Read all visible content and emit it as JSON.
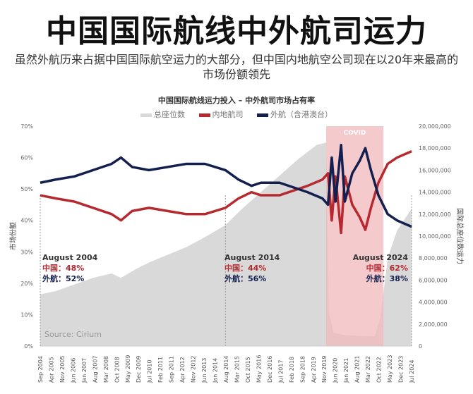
{
  "headline": "中国国际航线中外航司运力",
  "subtitle": "虽然外航历来占据中国国际航空运力的大部分，但中国内地航空公司现在以20年来最高的市场份额领先",
  "source": "Source: Cirium",
  "colors": {
    "seats": "#d9d9d9",
    "china": "#b5292f",
    "foreign": "#13204f",
    "covid": "#f0b8bc"
  },
  "chart_data": {
    "type": "line",
    "title": "中国国际航线运力投入 – 中外航司市场占有率",
    "ylabel": "市场份额",
    "y2label": "国际总座位数运力",
    "ylim": [
      0,
      70
    ],
    "y2lim": [
      0,
      20000000
    ],
    "yticks": [
      "0%",
      "10%",
      "20%",
      "30%",
      "40%",
      "50%",
      "60%",
      "70%"
    ],
    "y2ticks": [
      "0",
      "2,000,000",
      "4,000,000",
      "6,000,000",
      "8,000,000",
      "10,000,000",
      "12,000,000",
      "14,000,000",
      "16,000,000",
      "18,000,000",
      "20,000,000"
    ],
    "xticks": [
      "Sep 2004",
      "Apr 2005",
      "Nov 2005",
      "Jun 2006",
      "Jan 2007",
      "Aug 2007",
      "Mar 2008",
      "Oct 2008",
      "May 2009",
      "Dec 2009",
      "Jul 2010",
      "Feb 2011",
      "Sep 2011",
      "Apr 2012",
      "Nov 2012",
      "Jun 2013",
      "Jan 2014",
      "Aug 2014",
      "Mar 2015",
      "Oct 2015",
      "May 2016",
      "Dec 2016",
      "Jul 2017",
      "Feb 2018",
      "Sep 2018",
      "Apr 2019",
      "Nov 2019",
      "Jun 2020",
      "Jan 2021",
      "Aug 2021",
      "Mar 2022",
      "Oct 2022",
      "May 2023",
      "Dec 2023",
      "Jul 2024"
    ],
    "xlim": [
      2004.67,
      2024.58
    ],
    "covid_band": {
      "label": "COVID",
      "from": 2020.0,
      "to": 2023.07
    },
    "series": [
      {
        "name": "总座位数",
        "type": "area",
        "axis": "right",
        "x": [
          2004.67,
          2005.5,
          2006.5,
          2007.5,
          2008.5,
          2009.0,
          2009.8,
          2010.5,
          2011.5,
          2012.5,
          2013.5,
          2014.6,
          2015.5,
          2016.5,
          2017.5,
          2018.5,
          2019.5,
          2020.0,
          2020.15,
          2020.4,
          2021.0,
          2022.0,
          2022.6,
          2022.9,
          2023.3,
          2023.8,
          2024.58
        ],
        "values": [
          4700000,
          5000000,
          5600000,
          6200000,
          6600000,
          6200000,
          7000000,
          7600000,
          8300000,
          9000000,
          9900000,
          11000000,
          12500000,
          14000000,
          15500000,
          17000000,
          18300000,
          18500000,
          3000000,
          1200000,
          1000000,
          900000,
          900000,
          2500000,
          8000000,
          10500000,
          12500000
        ]
      },
      {
        "name": "内地航司",
        "axis": "left",
        "x": [
          2004.67,
          2005.5,
          2006.5,
          2007.5,
          2008.5,
          2009.0,
          2009.6,
          2010.5,
          2011.5,
          2012.5,
          2013.5,
          2014.6,
          2015.3,
          2016.0,
          2016.5,
          2017.5,
          2018.5,
          2019.0,
          2019.8,
          2020.1,
          2020.3,
          2020.5,
          2020.8,
          2021.0,
          2021.4,
          2021.8,
          2022.1,
          2022.4,
          2022.8,
          2023.3,
          2023.8,
          2024.58
        ],
        "values": [
          48,
          47,
          46,
          44,
          42,
          40,
          43,
          44,
          43,
          42,
          42,
          44,
          47,
          49,
          48,
          48,
          50,
          51,
          53,
          55,
          40,
          54,
          36,
          54,
          45,
          41,
          37,
          44,
          52,
          58,
          60,
          62
        ]
      },
      {
        "name": "外航（含港澳台）",
        "axis": "left",
        "x": [
          2004.67,
          2005.5,
          2006.5,
          2007.5,
          2008.5,
          2009.0,
          2009.6,
          2010.5,
          2011.5,
          2012.5,
          2013.5,
          2014.6,
          2015.3,
          2016.0,
          2016.5,
          2017.5,
          2018.5,
          2019.0,
          2019.8,
          2020.1,
          2020.3,
          2020.5,
          2020.8,
          2021.0,
          2021.4,
          2021.8,
          2022.1,
          2022.4,
          2022.8,
          2023.3,
          2023.8,
          2024.58
        ],
        "values": [
          52,
          53,
          54,
          56,
          58,
          60,
          57,
          56,
          57,
          58,
          58,
          56,
          53,
          51,
          52,
          52,
          50,
          49,
          47,
          45,
          60,
          46,
          64,
          46,
          55,
          59,
          63,
          56,
          48,
          42,
          40,
          38
        ]
      }
    ]
  },
  "annotations": [
    {
      "date": "August  2004",
      "china": "中国：48%",
      "foreign": "外航：52%"
    },
    {
      "date": "August  2014",
      "china": "中国：44%",
      "foreign": "外航：56%"
    },
    {
      "date": "August  2024",
      "china": "中国：62%",
      "foreign": "外航：38%"
    }
  ]
}
